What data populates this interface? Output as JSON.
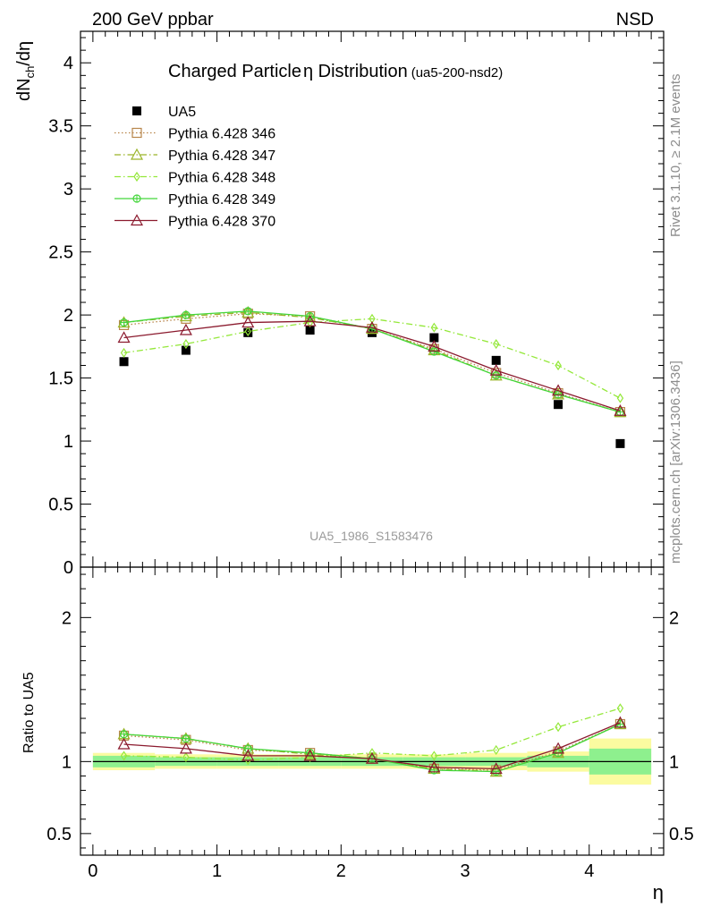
{
  "header": {
    "energy_label": "200 GeV ppbar",
    "process_label": "NSD"
  },
  "side_labels": {
    "rivet": "Rivet 3.1.10, ≥ 2.1M events",
    "mcplots": "mcplots.cern.ch [arXiv:1306.3436]"
  },
  "chart_data": [
    {
      "type": "scatter",
      "panel": "main",
      "title": "Charged Particle",
      "title_symbol": "η",
      "title_tail": " Distribution",
      "subtitle": "(ua5-200-nsd2)",
      "ylabel": "dN",
      "ylabel_sub": "ch",
      "ylabel_tail": "/dη",
      "watermark": "UA5_1986_S1583476",
      "xlim": [
        -0.1,
        4.6
      ],
      "ylim": [
        0,
        4.25
      ],
      "yticks": [
        0,
        0.5,
        1,
        1.5,
        2,
        2.5,
        3,
        3.5,
        4
      ],
      "y_tick_labels": [
        "0",
        "0.5",
        "1",
        "1.5",
        "2",
        "2.5",
        "3",
        "3.5",
        "4"
      ],
      "legend_position": "top-left",
      "x": [
        0.25,
        0.75,
        1.25,
        1.75,
        2.25,
        2.75,
        3.25,
        3.75,
        4.25
      ],
      "series": [
        {
          "name": "UA5",
          "color": "#000000",
          "marker": "square-filled",
          "line": "none",
          "values": [
            1.63,
            1.72,
            1.86,
            1.88,
            1.86,
            1.82,
            1.64,
            1.29,
            0.98
          ]
        },
        {
          "name": "Pythia 6.428 346",
          "color": "#b8864b",
          "marker": "square-open",
          "line": "dotted",
          "values": [
            1.92,
            1.97,
            2.01,
            1.99,
            1.89,
            1.73,
            1.54,
            1.38,
            1.23
          ]
        },
        {
          "name": "Pythia 6.428 347",
          "color": "#9ab528",
          "marker": "triangle-open",
          "line": "dashdot",
          "values": [
            1.94,
            1.99,
            2.02,
            1.98,
            1.89,
            1.72,
            1.52,
            1.37,
            1.23
          ]
        },
        {
          "name": "Pythia 6.428 348",
          "color": "#94e83a",
          "marker": "diamond-open",
          "line": "dashdot",
          "values": [
            1.7,
            1.77,
            1.87,
            1.94,
            1.97,
            1.9,
            1.77,
            1.6,
            1.34
          ]
        },
        {
          "name": "Pythia 6.428 349",
          "color": "#43d63a",
          "marker": "circle-cross",
          "line": "solid",
          "values": [
            1.94,
            2.0,
            2.03,
            1.99,
            1.89,
            1.71,
            1.52,
            1.37,
            1.23
          ]
        },
        {
          "name": "Pythia 6.428 370",
          "color": "#8b1a2e",
          "marker": "triangle-open",
          "line": "solid",
          "values": [
            1.82,
            1.88,
            1.94,
            1.95,
            1.9,
            1.75,
            1.56,
            1.4,
            1.24
          ]
        }
      ]
    },
    {
      "type": "line",
      "panel": "ratio",
      "ylabel": "Ratio to UA5",
      "xlabel": "η",
      "xlim": [
        -0.1,
        4.6
      ],
      "ylim": [
        0.35,
        2.35
      ],
      "xticks": [
        0,
        1,
        2,
        3,
        4
      ],
      "x_tick_labels": [
        "0",
        "1",
        "2",
        "3",
        "4"
      ],
      "yticks": [
        0.5,
        1,
        2
      ],
      "y_tick_labels": [
        "0.5",
        "1",
        "2"
      ],
      "x": [
        0.25,
        0.75,
        1.25,
        1.75,
        2.25,
        2.75,
        3.25,
        3.75,
        4.25
      ],
      "bin_edges": [
        0,
        0.5,
        1,
        1.5,
        2,
        2.5,
        3,
        3.5,
        4,
        4.5
      ],
      "band_stat": [
        0.04,
        0.03,
        0.03,
        0.03,
        0.03,
        0.03,
        0.03,
        0.04,
        0.09
      ],
      "band_total": [
        0.06,
        0.05,
        0.05,
        0.05,
        0.05,
        0.05,
        0.06,
        0.07,
        0.16
      ],
      "band_colors": {
        "inner": "#8ef08e",
        "outer": "#fbfba0"
      },
      "series": [
        {
          "name": "Pythia 6.428 346",
          "values": [
            1.18,
            1.15,
            1.08,
            1.06,
            1.02,
            0.95,
            0.94,
            1.07,
            1.26
          ]
        },
        {
          "name": "Pythia 6.428 347",
          "values": [
            1.19,
            1.16,
            1.09,
            1.05,
            1.02,
            0.95,
            0.93,
            1.06,
            1.26
          ]
        },
        {
          "name": "Pythia 6.428 348",
          "values": [
            1.04,
            1.03,
            1.01,
            1.03,
            1.06,
            1.04,
            1.08,
            1.24,
            1.37
          ]
        },
        {
          "name": "Pythia 6.428 349",
          "values": [
            1.19,
            1.16,
            1.09,
            1.06,
            1.02,
            0.94,
            0.93,
            1.06,
            1.26
          ]
        },
        {
          "name": "Pythia 6.428 370",
          "values": [
            1.12,
            1.09,
            1.04,
            1.04,
            1.02,
            0.96,
            0.95,
            1.09,
            1.27
          ]
        }
      ]
    }
  ]
}
